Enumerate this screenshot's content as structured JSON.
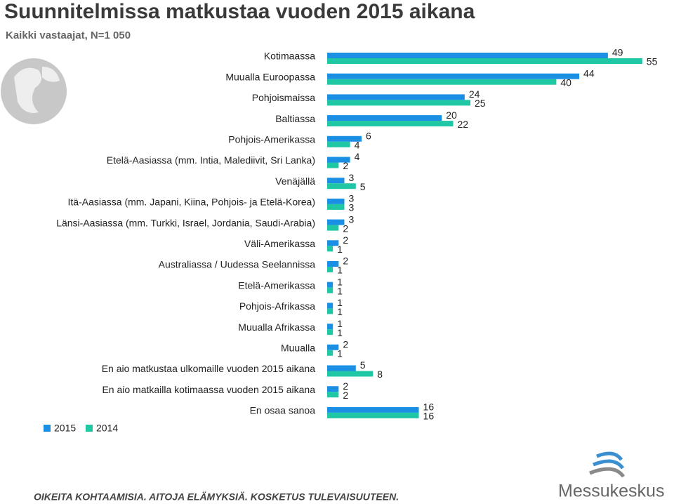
{
  "chart_data": {
    "type": "bar",
    "orientation": "horizontal",
    "title": "Suunnitelmissa matkustaa vuoden 2015 aikana",
    "subtitle": "Kaikki vastaajat, N=1 050",
    "categories": [
      "Kotimaassa",
      "Muualla Euroopassa",
      "Pohjoismaissa",
      "Baltiassa",
      "Pohjois-Amerikassa",
      "Etelä-Aasiassa (mm. Intia, Malediivit, Sri Lanka)",
      "Venäjällä",
      "Itä-Aasiassa (mm. Japani, Kiina, Pohjois- ja Etelä-Korea)",
      "Länsi-Aasiassa (mm. Turkki, Israel, Jordania, Saudi-Arabia)",
      "Väli-Amerikassa",
      "Australiassa / Uudessa Seelannissa",
      "Etelä-Amerikassa",
      "Pohjois-Afrikassa",
      "Muualla Afrikassa",
      "Muualla",
      "En aio matkustaa ulkomaille vuoden 2015 aikana",
      "En aio matkailla kotimaassa vuoden 2015 aikana",
      "En osaa sanoa"
    ],
    "series": [
      {
        "name": "2015",
        "color": "#1a8fe3",
        "values": [
          49,
          44,
          24,
          20,
          6,
          4,
          3,
          3,
          3,
          2,
          2,
          1,
          1,
          1,
          2,
          5,
          2,
          16
        ]
      },
      {
        "name": "2014",
        "color": "#1fc7a5",
        "values": [
          55,
          40,
          25,
          22,
          4,
          2,
          5,
          3,
          2,
          1,
          1,
          1,
          1,
          1,
          1,
          8,
          2,
          16
        ]
      }
    ],
    "legend": "bottom-left"
  },
  "footer": {
    "slogan": "OIKEITA KOHTAAMISIA. AITOJA ELÄMYKSIÄ. KOSKETUS TULEVAISUUTEEN.",
    "logo": "Messukeskus"
  }
}
